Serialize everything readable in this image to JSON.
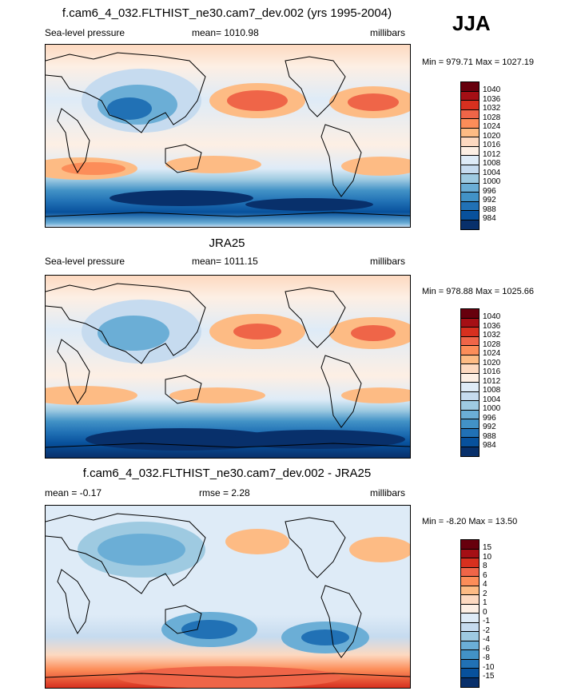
{
  "season": "JJA",
  "panels": [
    {
      "title": "f.cam6_4_032.FLTHIST_ne30.cam7_dev.002 (yrs 1995-2004)",
      "left_label": "Sea-level pressure",
      "center_label": "mean= 1010.98",
      "right_label": "millibars",
      "minmax": "Min = 979.71 Max = 1027.19",
      "colorbar_labels": [
        "1040",
        "1036",
        "1032",
        "1028",
        "1024",
        "1020",
        "1016",
        "1012",
        "1008",
        "1004",
        "1000",
        "996",
        "992",
        "988",
        "984"
      ],
      "colors": [
        "#67000d",
        "#a50f15",
        "#d7301f",
        "#ef6548",
        "#fc8d59",
        "#fdbb84",
        "#fdd9c0",
        "#fdefe4",
        "#deebf7",
        "#c6dbef",
        "#9ecae1",
        "#6baed6",
        "#4292c6",
        "#2171b5",
        "#08519c",
        "#08306b"
      ]
    },
    {
      "title": "JRA25",
      "left_label": "Sea-level pressure",
      "center_label": "mean= 1011.15",
      "right_label": "millibars",
      "minmax": "Min = 978.88 Max = 1025.66",
      "colorbar_labels": [
        "1040",
        "1036",
        "1032",
        "1028",
        "1024",
        "1020",
        "1016",
        "1012",
        "1008",
        "1004",
        "1000",
        "996",
        "992",
        "988",
        "984"
      ],
      "colors": [
        "#67000d",
        "#a50f15",
        "#d7301f",
        "#ef6548",
        "#fc8d59",
        "#fdbb84",
        "#fdd9c0",
        "#fdefe4",
        "#deebf7",
        "#c6dbef",
        "#9ecae1",
        "#6baed6",
        "#4292c6",
        "#2171b5",
        "#08519c",
        "#08306b"
      ]
    },
    {
      "title": "f.cam6_4_032.FLTHIST_ne30.cam7_dev.002 - JRA25",
      "left_label": "mean =  -0.17",
      "center_label": "rmse =   2.28",
      "right_label": "millibars",
      "minmax": "Min =  -8.20 Max =  13.50",
      "colorbar_labels": [
        "15",
        "10",
        "8",
        "6",
        "4",
        "2",
        "1",
        "0",
        "-1",
        "-2",
        "-4",
        "-6",
        "-8",
        "-10",
        "-15"
      ],
      "colors": [
        "#67000d",
        "#a50f15",
        "#d7301f",
        "#ef6548",
        "#fc8d59",
        "#fdbb84",
        "#fdd9c0",
        "#fdefe4",
        "#deebf7",
        "#c6dbef",
        "#9ecae1",
        "#6baed6",
        "#4292c6",
        "#2171b5",
        "#08519c",
        "#08306b"
      ]
    }
  ]
}
